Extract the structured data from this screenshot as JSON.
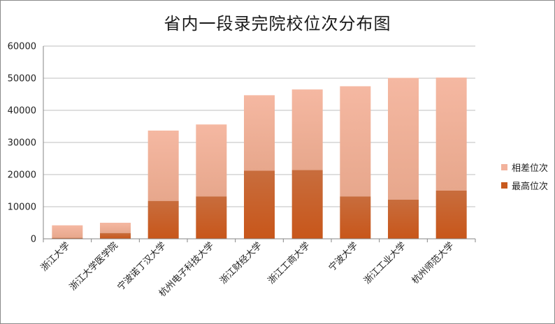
{
  "chart_data": {
    "type": "bar",
    "stacked": true,
    "title": "省内一段录完院校位次分布图",
    "xlabel": "",
    "ylabel": "",
    "ylim": [
      0,
      60000
    ],
    "yticks": [
      "0",
      "10000",
      "20000",
      "30000",
      "40000",
      "50000",
      "60000"
    ],
    "grid": true,
    "legend_position": "right",
    "categories": [
      "浙江大学",
      "浙江大学医学院",
      "宁波诺丁汉大学",
      "杭州电子科技大学",
      "浙江财经大学",
      "浙江工商大学",
      "宁波大学",
      "浙江工业大学",
      "杭州师范大学"
    ],
    "series": [
      {
        "name": "最高位次",
        "values": [
          300,
          1800,
          11800,
          13200,
          21200,
          21400,
          13200,
          12200,
          15000
        ]
      },
      {
        "name": "相差位次",
        "values": [
          3900,
          3200,
          21900,
          22400,
          23500,
          25100,
          34300,
          37900,
          35200
        ]
      }
    ],
    "colors": {
      "lower_top": "#c86d3d",
      "lower_bottom": "#c8561a",
      "upper_top": "#f5b8a2",
      "upper_bottom": "#e7a78c",
      "grid": "#bfbfbf",
      "axis": "#868686",
      "legend_lower": "#c8591d",
      "legend_upper": "#f2b29c"
    }
  }
}
